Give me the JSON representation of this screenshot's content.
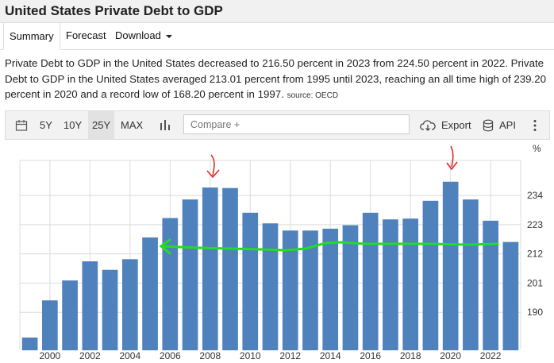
{
  "header": {
    "title": "United States Private Debt to GDP"
  },
  "tabs": [
    {
      "label": "Summary",
      "active": true
    },
    {
      "label": "Forecast"
    },
    {
      "label": "Download"
    }
  ],
  "description": {
    "text": "Private Debt to GDP in the United States decreased to 216.50 percent in 2023 from 224.50 percent in 2022. Private Debt to GDP in the United States averaged 213.01 percent from 1995 until 2023, reaching an all time high of 239.20 percent in 2020 and a record low of 168.20 percent in 1997.",
    "source": "source: OECD"
  },
  "toolbar": {
    "ranges": [
      "5Y",
      "10Y",
      "25Y",
      "MAX"
    ],
    "active_range": "25Y",
    "compare_placeholder": "Compare +",
    "export_label": "Export",
    "api_label": "API"
  },
  "icons": [
    "calendar-icon",
    "bar-chart-icon",
    "cloud-download-icon",
    "database-icon",
    "more-vertical-icon"
  ],
  "colors": {
    "bar": "#4f81bd",
    "annotation_arrow": "#e02020",
    "annotation_line": "#22dd22"
  },
  "chart_data": {
    "type": "bar",
    "x": [
      1999,
      2000,
      2001,
      2002,
      2003,
      2004,
      2005,
      2006,
      2007,
      2008,
      2009,
      2010,
      2011,
      2012,
      2013,
      2014,
      2015,
      2016,
      2017,
      2018,
      2019,
      2020,
      2021,
      2022,
      2023
    ],
    "values": [
      180.5,
      194.5,
      202.0,
      209.2,
      206.0,
      210.0,
      218.2,
      225.5,
      232.5,
      237.0,
      236.8,
      227.5,
      223.5,
      220.8,
      220.8,
      221.5,
      222.8,
      227.5,
      225.0,
      225.3,
      232.0,
      239.2,
      232.5,
      224.5,
      216.5
    ],
    "xticks": [
      "2000",
      "2002",
      "2004",
      "2006",
      "2008",
      "2010",
      "2012",
      "2014",
      "2016",
      "2018",
      "2020",
      "2022"
    ],
    "yticks": [
      "190",
      "201",
      "212",
      "223",
      "234"
    ],
    "unit_label": "%",
    "ylim": [
      176,
      246
    ],
    "grid": true
  }
}
